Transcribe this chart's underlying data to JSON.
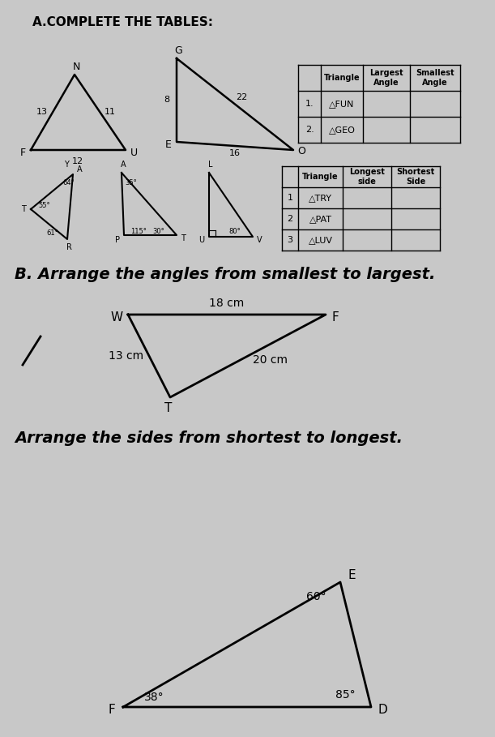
{
  "bg_color": "#c8c8c8",
  "paper_color": "#d4d4d4",
  "title_A": "A.COMPLETE THE TABLES:",
  "section_B_title": "B. Arrange the angles from smallest to largest.",
  "section_C_title": "Arrange the sides from shortest to longest.",
  "table1_headers": [
    "",
    "Triangle",
    "Largest\nAngle",
    "Smallest\nAngle"
  ],
  "table1_rows": [
    [
      "1.",
      "△FUN",
      "",
      ""
    ],
    [
      "2.",
      "△GEO",
      "",
      ""
    ]
  ],
  "table2_headers": [
    "",
    "Triangle",
    "Longest\nside",
    "Shortest\nSide"
  ],
  "table2_rows": [
    [
      "1",
      "△TRY",
      "",
      ""
    ],
    [
      "2",
      "△PAT",
      "",
      ""
    ],
    [
      "3",
      "△LUV",
      "",
      ""
    ]
  ]
}
